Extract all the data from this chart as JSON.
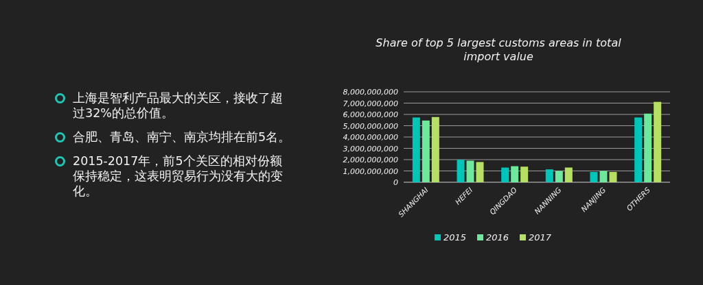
{
  "chart_data": {
    "type": "bar",
    "title": "Share of top 5 largest customs areas in total import value",
    "categories": [
      "SHANGHAI",
      "HEFEI",
      "QINGDAO",
      "NANNING",
      "NANJING",
      "OTHERS"
    ],
    "series": [
      {
        "name": "2015",
        "color": "#00c5b9",
        "values": [
          5730000000,
          1990000000,
          1300000000,
          1140000000,
          910000000,
          5730000000
        ]
      },
      {
        "name": "2016",
        "color": "#6ee89c",
        "values": [
          5460000000,
          1910000000,
          1420000000,
          1000000000,
          1000000000,
          6070000000
        ]
      },
      {
        "name": "2017",
        "color": "#b5e061",
        "values": [
          5770000000,
          1790000000,
          1380000000,
          1300000000,
          910000000,
          7110000000
        ]
      }
    ],
    "ylim": [
      0,
      8000000000
    ],
    "yticks": [
      {
        "value": 0,
        "label": "0"
      },
      {
        "value": 1000000000,
        "label": "1,000,000,000"
      },
      {
        "value": 2000000000,
        "label": "2,000,000,000"
      },
      {
        "value": 3000000000,
        "label": "3,000,000,000"
      },
      {
        "value": 4000000000,
        "label": "4,000,000,000"
      },
      {
        "value": 5000000000,
        "label": "5,000,000,000"
      },
      {
        "value": 6000000000,
        "label": "6,000,000,000"
      },
      {
        "value": 7000000000,
        "label": "7,000,000,000"
      },
      {
        "value": 8000000000,
        "label": "8,000,000,000"
      }
    ],
    "grid": "y",
    "legend": "bottom",
    "annotations": [
      "上海是智利产品最大的关区，接收了超过32%的总价值。",
      "合肥、青岛、南宁、南京均排在前5名。",
      "2015-2017年，前5个关区的相对份额保持稳定，这表明贸易行为没有大的变化。"
    ]
  }
}
